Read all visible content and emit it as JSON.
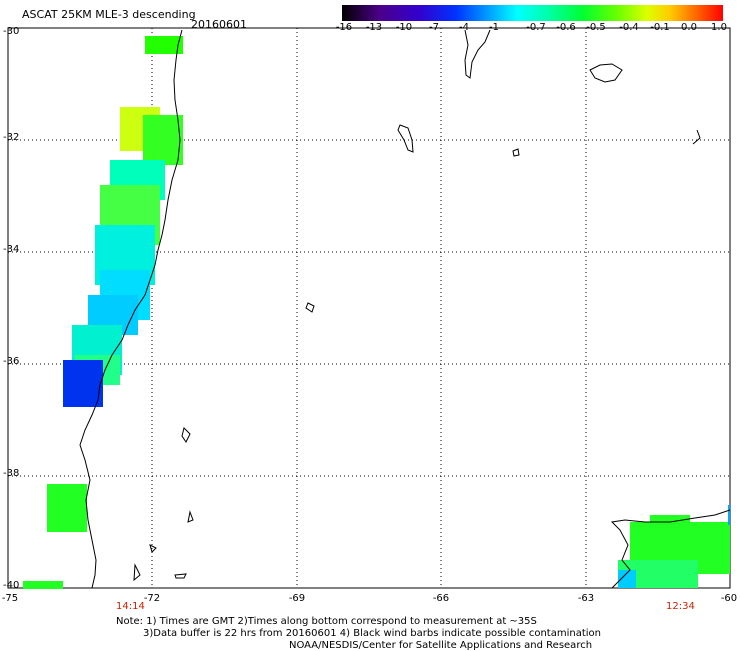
{
  "title": "ASCAT 25KM MLE-3 descending",
  "date": "20160601",
  "colorbar": {
    "ticks": [
      "-16",
      "-13",
      "-10",
      "-7",
      "-4",
      "-1",
      "-0.7",
      "-0.6",
      "-0.5",
      "-0.4",
      "-0.1",
      "0.0",
      "1.0"
    ]
  },
  "axes": {
    "lat_labels": [
      "-30",
      "-32",
      "-34",
      "-36",
      "-38",
      "-40"
    ],
    "lon_labels": [
      "-75",
      "-72",
      "-69",
      "-66",
      "-63",
      "-60"
    ]
  },
  "times": {
    "left": "14:14",
    "right": "12:34"
  },
  "notes": {
    "line1": "Note: 1) Times are GMT 2)Times along bottom correspond to measurement at ~35S",
    "line2": "3)Data buffer is 22 hrs from 20160601 4) Black wind barbs indicate possible contamination",
    "line3": "NOAA/NESDIS/Center for Satellite Applications and Research"
  }
}
